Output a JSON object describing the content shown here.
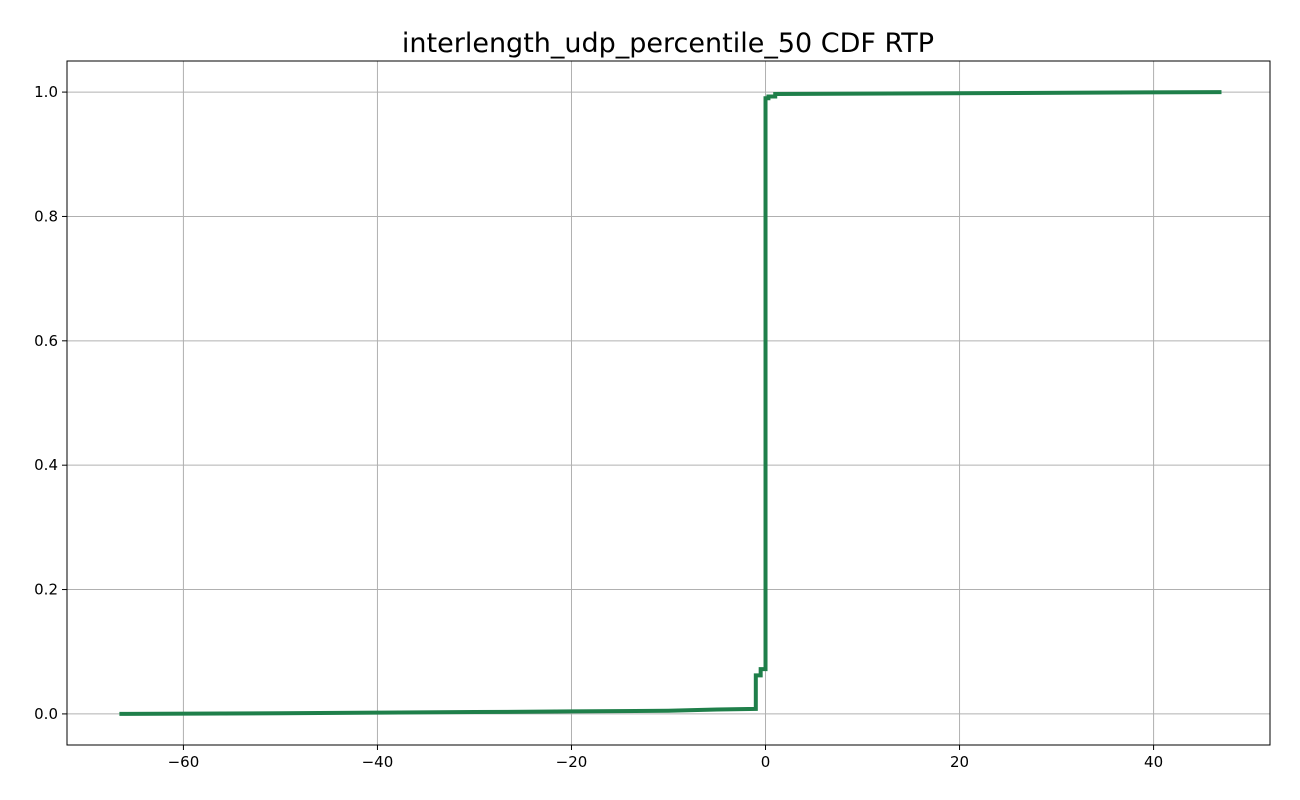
{
  "chart_data": {
    "type": "line",
    "title": "interlength_udp_percentile_50 CDF RTP",
    "xlabel": "",
    "ylabel": "",
    "xlim": [
      -72,
      52
    ],
    "ylim": [
      -0.05,
      1.05
    ],
    "x_ticks": [
      -60,
      -40,
      -20,
      0,
      20,
      40
    ],
    "x_tick_labels": [
      "−60",
      "−40",
      "−20",
      "0",
      "20",
      "40"
    ],
    "y_ticks": [
      0.0,
      0.2,
      0.4,
      0.6,
      0.8,
      1.0
    ],
    "y_tick_labels": [
      "0.0",
      "0.2",
      "0.4",
      "0.6",
      "0.8",
      "1.0"
    ],
    "grid": true,
    "series": [
      {
        "color": "#1f7f4a",
        "step": true,
        "x": [
          -66.6,
          -50,
          -40,
          -30,
          -20,
          -10,
          -5,
          -1.0,
          -1.0,
          -0.5,
          -0.5,
          0.0,
          0.0,
          0.3,
          0.3,
          1.0,
          1.0,
          47.0
        ],
        "y": [
          0.0,
          0.001,
          0.002,
          0.003,
          0.004,
          0.005,
          0.007,
          0.008,
          0.062,
          0.062,
          0.072,
          0.072,
          0.99,
          0.99,
          0.993,
          0.993,
          0.997,
          1.0
        ]
      }
    ]
  }
}
